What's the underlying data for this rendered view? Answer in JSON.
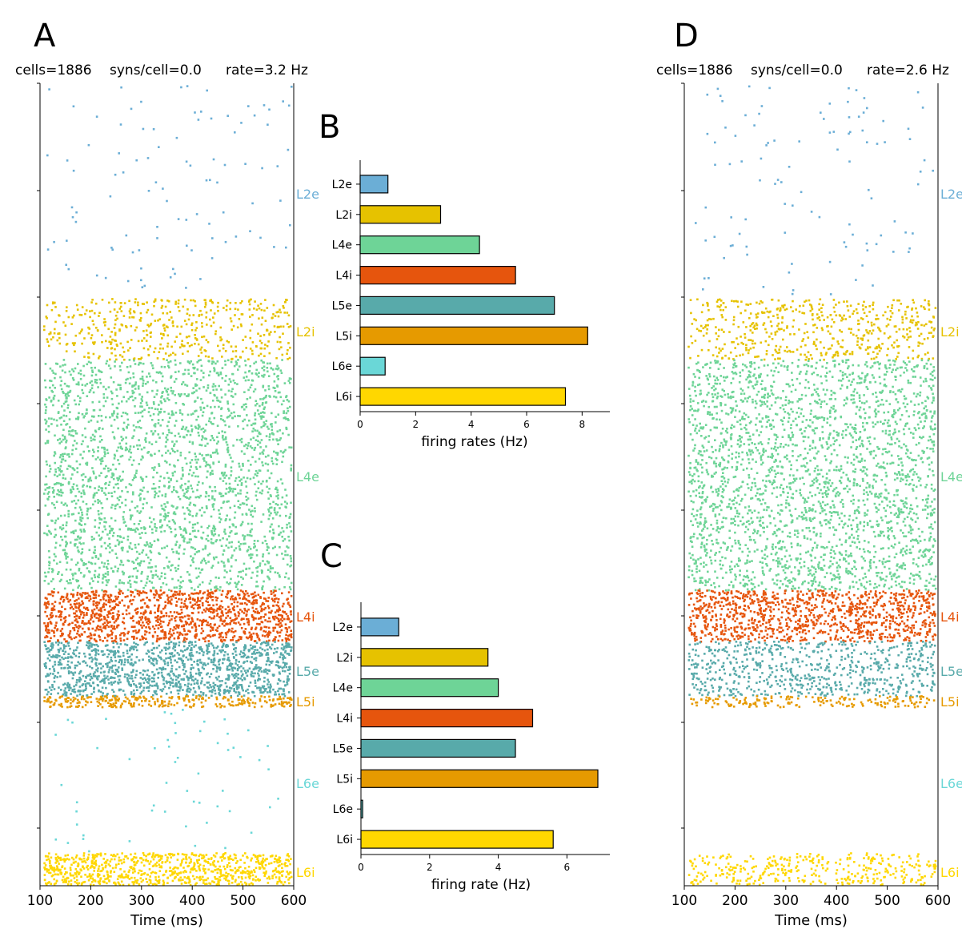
{
  "figure": {
    "panels": {
      "A": {
        "letter": "A",
        "cells": "cells=1886",
        "syns": "syns/cell=0.0",
        "rate": "rate=3.2 Hz"
      },
      "B": {
        "letter": "B"
      },
      "C": {
        "letter": "C"
      },
      "D": {
        "letter": "D",
        "cells": "cells=1886",
        "syns": "syns/cell=0.0",
        "rate": "rate=2.6 Hz"
      }
    }
  },
  "colors": {
    "L2e": "#6baed6",
    "L2i": "#e6c200",
    "L4e": "#6ed497",
    "L4i": "#e6550d",
    "L5e": "#58aaaa",
    "L5i": "#e69a00",
    "L6e": "#6ad7d7",
    "L6i": "#ffd700"
  },
  "chart_data": [
    {
      "type": "scatter",
      "panel": "A",
      "subtype": "raster",
      "xlabel": "Time (ms)",
      "xlim": [
        100,
        600
      ],
      "xticks": [
        "100",
        "200",
        "300",
        "400",
        "500",
        "600"
      ],
      "populations": [
        "L2e",
        "L2i",
        "L4e",
        "L4i",
        "L5e",
        "L5i",
        "L6e",
        "L6i"
      ],
      "population_rates_hz": [
        1.0,
        2.9,
        4.3,
        5.6,
        7.0,
        8.2,
        0.9,
        7.4
      ]
    },
    {
      "type": "bar",
      "panel": "B",
      "orientation": "horizontal",
      "categories": [
        "L2e",
        "L2i",
        "L4e",
        "L4i",
        "L5e",
        "L5i",
        "L6e",
        "L6i"
      ],
      "values": [
        1.0,
        2.9,
        4.3,
        5.6,
        7.0,
        8.2,
        0.9,
        7.4
      ],
      "xlabel": "firing rates (Hz)",
      "xlim": [
        0,
        9
      ],
      "xticks": [
        "0",
        "2",
        "4",
        "6",
        "8"
      ]
    },
    {
      "type": "bar",
      "panel": "C",
      "orientation": "horizontal",
      "categories": [
        "L2e",
        "L2i",
        "L4e",
        "L4i",
        "L5e",
        "L5i",
        "L6e",
        "L6i"
      ],
      "values": [
        1.1,
        3.7,
        4.0,
        5.0,
        4.5,
        6.9,
        0.05,
        5.6
      ],
      "xlabel": "firing rate (Hz)",
      "xlim": [
        0,
        7.25
      ],
      "xticks": [
        "0",
        "2",
        "4",
        "6"
      ]
    },
    {
      "type": "scatter",
      "panel": "D",
      "subtype": "raster",
      "xlabel": "Time (ms)",
      "xlim": [
        100,
        600
      ],
      "xticks": [
        "100",
        "200",
        "300",
        "400",
        "500",
        "600"
      ],
      "populations": [
        "L2e",
        "L2i",
        "L4e",
        "L4i",
        "L5e",
        "L5i",
        "L6e",
        "L6i"
      ],
      "population_rates_hz": [
        1.1,
        3.7,
        4.0,
        5.0,
        4.5,
        6.9,
        0.05,
        5.6
      ]
    }
  ]
}
